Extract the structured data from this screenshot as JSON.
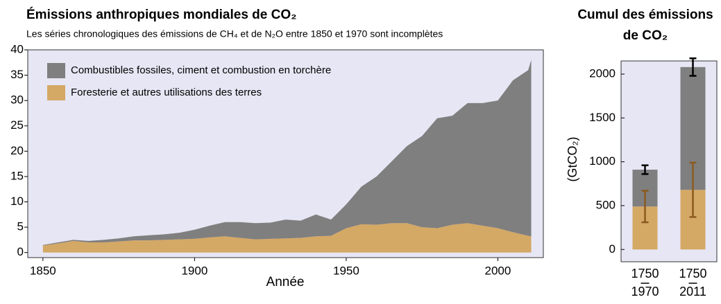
{
  "chart_data": [
    {
      "type": "area",
      "title": "Émissions anthropiques mondiales de CO₂",
      "subtitle": "Les séries chronologiques des émissions de CH₄ et de N₂O entre 1850 et 1970 sont incomplètes",
      "x_label": "Année",
      "x": [
        1850,
        1855,
        1860,
        1865,
        1870,
        1875,
        1880,
        1885,
        1890,
        1895,
        1900,
        1905,
        1910,
        1915,
        1920,
        1925,
        1930,
        1935,
        1940,
        1945,
        1950,
        1955,
        1960,
        1965,
        1970,
        1975,
        1980,
        1985,
        1990,
        1995,
        2000,
        2005,
        2010,
        2011
      ],
      "series": [
        {
          "name": "Foresterie et autres utilisations des terres",
          "color": "#d4a865",
          "values": [
            1.4,
            1.8,
            2.3,
            2.0,
            2.0,
            2.2,
            2.4,
            2.4,
            2.5,
            2.6,
            2.7,
            3.0,
            3.2,
            2.9,
            2.6,
            2.7,
            2.8,
            2.9,
            3.2,
            3.3,
            4.8,
            5.6,
            5.5,
            5.8,
            5.8,
            5.0,
            4.8,
            5.5,
            5.8,
            5.3,
            4.8,
            4.0,
            3.3,
            3.2
          ]
        },
        {
          "name": "Combustibles fossiles, ciment et combustion en torchère",
          "color": "#7f7f7f",
          "values": [
            0.1,
            0.2,
            0.2,
            0.3,
            0.5,
            0.6,
            0.8,
            1.0,
            1.1,
            1.3,
            1.8,
            2.3,
            2.8,
            3.1,
            3.2,
            3.2,
            3.7,
            3.4,
            4.3,
            3.2,
            4.7,
            7.4,
            9.5,
            12.2,
            15.2,
            18,
            21.7,
            21.5,
            23.7,
            24.2,
            25.2,
            30,
            32.7,
            34.8
          ]
        }
      ],
      "legend_order": [
        1,
        0
      ],
      "xlim": [
        1845,
        2015
      ],
      "xticks": [
        1850,
        1900,
        1950,
        2000
      ],
      "ylim": [
        -1,
        40
      ],
      "yticks": [
        0,
        5,
        10,
        15,
        20,
        25,
        30,
        35,
        40
      ],
      "background": "#e6e6f4"
    },
    {
      "type": "bar",
      "title": [
        "Cumul des émissions",
        "de CO₂"
      ],
      "y_label": "(GtCO₂)",
      "categories": [
        [
          "1750",
          "1970"
        ],
        [
          "1750",
          "2011"
        ]
      ],
      "series": [
        {
          "color": "#d4a865",
          "error_color": "#8b5a1e",
          "values": [
            490,
            680
          ],
          "errors": [
            180,
            310
          ]
        },
        {
          "color": "#7f7f7f",
          "error_color": "#000000",
          "values": [
            420,
            1400
          ],
          "errors": [
            50,
            100
          ]
        }
      ],
      "ylim": [
        -140,
        2150
      ],
      "yticks": [
        0,
        500,
        1000,
        1500,
        2000
      ],
      "background": "#e6e6f4"
    }
  ]
}
